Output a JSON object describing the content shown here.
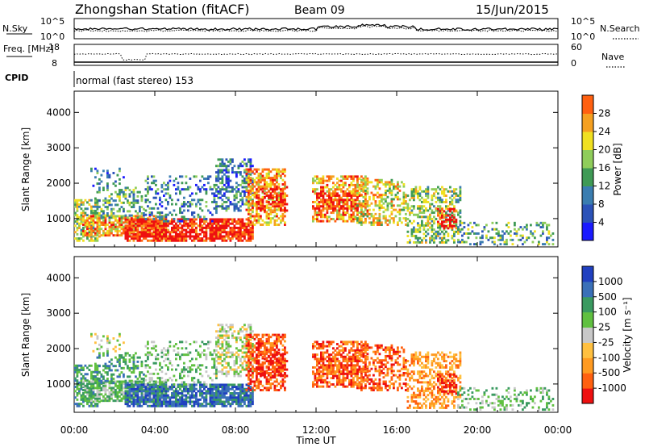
{
  "header": {
    "station": "Zhongshan Station (fitACF)",
    "beam": "Beam 09",
    "date": "15/Jun/2015",
    "cpid_label": "CPID",
    "cpid_text": "normal (fast stereo) 153"
  },
  "colors": {
    "power_scale": [
      "#1a1aff",
      "#2b52b8",
      "#3a7db0",
      "#3f9a55",
      "#8fcd5a",
      "#f0e020",
      "#f5a020",
      "#ff6010",
      "#ee1010"
    ],
    "velocity_scale": [
      "#ee1010",
      "#ff6010",
      "#ff9a20",
      "#ffc040",
      "#c8c8c8",
      "#60c040",
      "#3a9a60",
      "#3a70b8",
      "#2040c0"
    ]
  },
  "chart_data": [
    {
      "type": "line",
      "panel": "N.Sky / N.Search",
      "left_label": "N.Sky",
      "right_label": "N.Search",
      "left_ticks": [
        "10^5",
        "10^0"
      ],
      "right_ticks": [
        "10^5",
        "10^0"
      ]
    },
    {
      "type": "line",
      "panel": "Freq / Nave",
      "left_label": "Freq. [MHz]",
      "right_label": "Nave",
      "left_ticks": [
        "18",
        "8"
      ],
      "right_ticks": [
        "60",
        "0"
      ]
    },
    {
      "type": "heatmap",
      "panel": "power",
      "ylabel": "Slant Range [km]",
      "xlabel": "",
      "y_ticks": [
        "1000",
        "2000",
        "3000",
        "4000"
      ],
      "ylim": [
        200,
        4600
      ],
      "colorbar_label": "Power [dB]",
      "colorbar_ticks": [
        "4",
        "8",
        "12",
        "16",
        "20",
        "24",
        "28"
      ],
      "colorbar_range": [
        0,
        32
      ]
    },
    {
      "type": "heatmap",
      "panel": "velocity",
      "ylabel": "Slant Range [km]",
      "xlabel": "Time UT",
      "x_ticks": [
        "00:00",
        "04:00",
        "08:00",
        "12:00",
        "16:00",
        "20:00",
        "00:00"
      ],
      "y_ticks": [
        "1000",
        "2000",
        "3000",
        "4000"
      ],
      "ylim": [
        200,
        4600
      ],
      "colorbar_label": "Velocity [m s⁻¹]",
      "colorbar_ticks": [
        "-1000",
        "-500",
        "-100",
        "-25",
        "25",
        "100",
        "500",
        "1000"
      ]
    }
  ]
}
